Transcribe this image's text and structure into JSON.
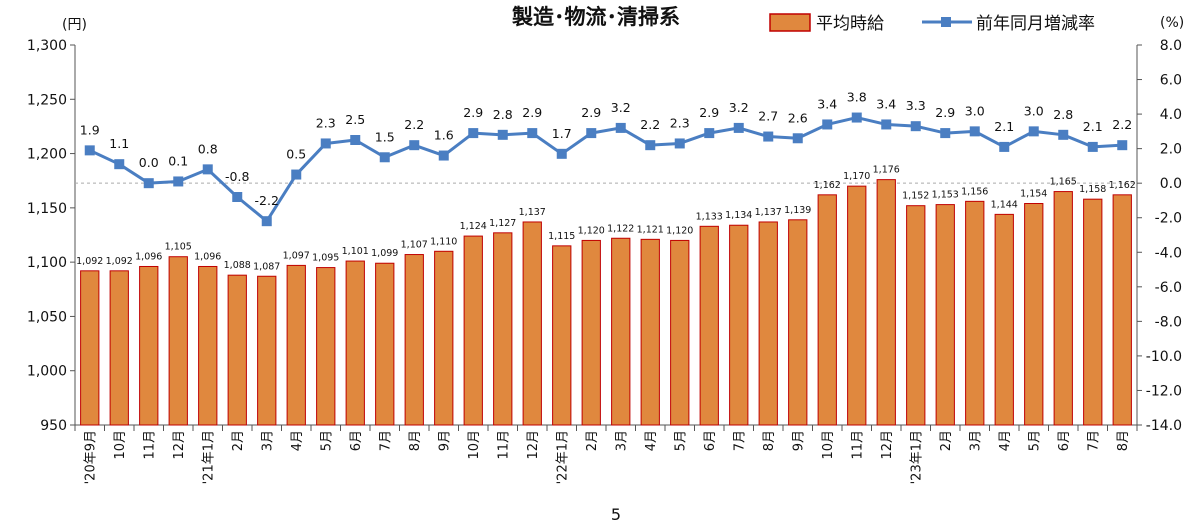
{
  "page_number": "5",
  "chart_data": {
    "type": "bar+line",
    "title": "製造･物流･清掃系",
    "y_left_unit": "(円)",
    "y_right_unit": "(%)",
    "y_left_ticks": [
      "950",
      "1,000",
      "1,050",
      "1,100",
      "1,150",
      "1,200",
      "1,250",
      "1,300"
    ],
    "y_right_ticks": [
      "-14.0",
      "-12.0",
      "-10.0",
      "-8.0",
      "-6.0",
      "-4.0",
      "-2.0",
      "0.0",
      "2.0",
      "4.0",
      "6.0",
      "8.0"
    ],
    "ylim_left": [
      950,
      1300
    ],
    "ylim_right": [
      -14,
      8
    ],
    "categories": [
      "'20年9月",
      "10月",
      "11月",
      "12月",
      "'21年1月",
      "2月",
      "3月",
      "4月",
      "5月",
      "6月",
      "7月",
      "8月",
      "9月",
      "10月",
      "11月",
      "12月",
      "'22年1月",
      "2月",
      "3月",
      "4月",
      "5月",
      "6月",
      "7月",
      "8月",
      "9月",
      "10月",
      "11月",
      "12月",
      "'23年1月",
      "2月",
      "3月",
      "4月",
      "5月",
      "6月",
      "7月",
      "8月"
    ],
    "series": [
      {
        "name": "平均時給",
        "kind": "bar",
        "axis": "left",
        "color": "#E0883E",
        "edge_color": "#C00000",
        "values": [
          1092,
          1092,
          1096,
          1105,
          1096,
          1088,
          1087,
          1097,
          1095,
          1101,
          1099,
          1107,
          1110,
          1124,
          1127,
          1137,
          1115,
          1120,
          1122,
          1121,
          1120,
          1133,
          1134,
          1137,
          1139,
          1162,
          1170,
          1176,
          1152,
          1153,
          1156,
          1144,
          1154,
          1165,
          1158,
          1162
        ],
        "labels": [
          "1,092",
          "1,092",
          "1,096",
          "1,105",
          "1,096",
          "1,088",
          "1,087",
          "1,097",
          "1,095",
          "1,101",
          "1,099",
          "1,107",
          "1,110",
          "1,124",
          "1,127",
          "1,137",
          "1,115",
          "1,120",
          "1,122",
          "1,121",
          "1,120",
          "1,133",
          "1,134",
          "1,137",
          "1,139",
          "1,162",
          "1,170",
          "1,176",
          "1,152",
          "1,153",
          "1,156",
          "1,144",
          "1,154",
          "1,165",
          "1,158",
          "1,162"
        ]
      },
      {
        "name": "前年同月増減率",
        "kind": "line",
        "axis": "right",
        "color": "#4A7EC2",
        "values": [
          1.9,
          1.1,
          0.0,
          0.1,
          0.8,
          -0.8,
          -2.2,
          0.5,
          2.3,
          2.5,
          1.5,
          2.2,
          1.6,
          2.9,
          2.8,
          2.9,
          1.7,
          2.9,
          3.2,
          2.2,
          2.3,
          2.9,
          3.2,
          2.7,
          2.6,
          3.4,
          3.8,
          3.4,
          3.3,
          2.9,
          3.0,
          2.1,
          3.0,
          2.8,
          2.1,
          2.2
        ],
        "labels": [
          "1.9",
          "1.1",
          "0.0",
          "0.1",
          "0.8",
          "-0.8",
          "-2.2",
          "0.5",
          "2.3",
          "2.5",
          "1.5",
          "2.2",
          "1.6",
          "2.9",
          "2.8",
          "2.9",
          "1.7",
          "2.9",
          "3.2",
          "2.2",
          "2.3",
          "2.9",
          "3.2",
          "2.7",
          "2.6",
          "3.4",
          "3.8",
          "3.4",
          "3.3",
          "2.9",
          "3.0",
          "2.1",
          "3.0",
          "2.8",
          "2.1",
          "2.2"
        ]
      }
    ],
    "legend_position": "top-right",
    "zero_line": "dashed"
  }
}
